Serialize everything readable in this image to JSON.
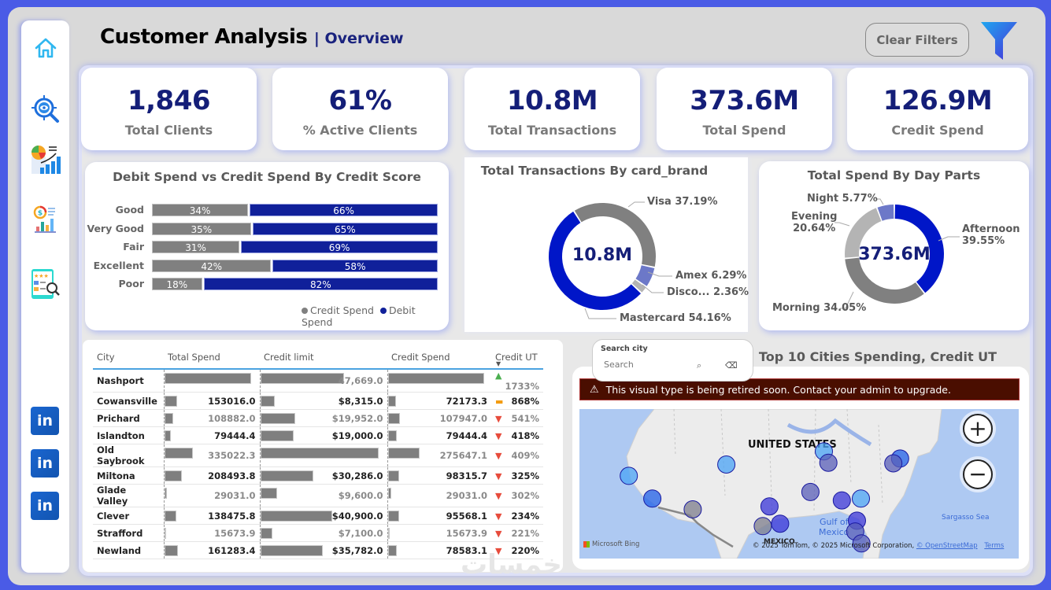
{
  "header": {
    "title": "Customer Analysis",
    "subtitle": "| Overview",
    "clear_filters_label": "Clear Filters"
  },
  "sidebar": {
    "items": [
      {
        "name": "home",
        "icon": "home-icon"
      },
      {
        "name": "insights",
        "icon": "eye-search-icon"
      },
      {
        "name": "analytics",
        "icon": "pie-bar-chart-icon"
      },
      {
        "name": "finance",
        "icon": "dollar-chart-icon"
      },
      {
        "name": "reviews",
        "icon": "rating-report-icon"
      }
    ],
    "social": [
      {
        "label": "in"
      },
      {
        "label": "in"
      },
      {
        "label": "in"
      }
    ]
  },
  "kpis": [
    {
      "value": "1,846",
      "label": "Total Clients"
    },
    {
      "value": "61%",
      "label": "% Active Clients"
    },
    {
      "value": "10.8M",
      "label": "Total Transactions"
    },
    {
      "value": "373.6M",
      "label": "Total Spend"
    },
    {
      "value": "126.9M",
      "label": "Credit Spend"
    }
  ],
  "colors": {
    "navy": "#141e78",
    "debit": "#10209a",
    "credit": "#808080",
    "blue_strong": "#0016c8",
    "blue_light": "#6c78c8",
    "gray_light": "#b4b4b4",
    "warning_bg": "#4a0e00"
  },
  "chart_data": [
    {
      "type": "bar",
      "stacked": "100%",
      "orientation": "horizontal",
      "title": "Debit Spend vs Credit Spend By Credit Score",
      "categories": [
        "Good",
        "Very Good",
        "Fair",
        "Excellent",
        "Poor"
      ],
      "series": [
        {
          "name": "Credit Spend",
          "values": [
            34,
            35,
            31,
            42,
            18
          ],
          "labels": [
            "34%",
            "35%",
            "31%",
            "42%",
            "18%"
          ]
        },
        {
          "name": "Debit Spend",
          "values": [
            66,
            65,
            69,
            58,
            82
          ],
          "labels": [
            "66%",
            "65%",
            "69%",
            "58%",
            "82%"
          ]
        }
      ],
      "legend": [
        "Credit Spend",
        "Debit Spend"
      ],
      "legend_position": "bottom-right"
    },
    {
      "type": "pie",
      "donut": true,
      "title": "Total Transactions By card_brand",
      "center_label": "10.8M",
      "slices": [
        {
          "name": "Visa",
          "value": 37.19,
          "label": "Visa 37.19%"
        },
        {
          "name": "Amex",
          "value": 6.29,
          "label": "Amex 6.29%"
        },
        {
          "name": "Discover",
          "value": 2.36,
          "label": "Disco... 2.36%"
        },
        {
          "name": "Mastercard",
          "value": 54.16,
          "label": "Mastercard 54.16%"
        }
      ]
    },
    {
      "type": "pie",
      "donut": true,
      "title": "Total Spend By Day Parts",
      "center_label": "373.6M",
      "slices": [
        {
          "name": "Afternoon",
          "value": 39.55,
          "label_line1": "Afternoon",
          "label_line2": "39.55%"
        },
        {
          "name": "Morning",
          "value": 34.05,
          "label_line1": "Morning 34.05%",
          "label_line2": ""
        },
        {
          "name": "Evening",
          "value": 20.64,
          "label_line1": "Evening",
          "label_line2": "20.64%"
        },
        {
          "name": "Night",
          "value": 5.77,
          "label_line1": "Night 5.77%",
          "label_line2": ""
        }
      ]
    },
    {
      "type": "table",
      "columns": [
        "City",
        "Total Spend",
        "Credit limit",
        "Credit Spend",
        "Credit UT"
      ],
      "sort_column": "Credit UT",
      "rows": [
        {
          "city": "Nashport",
          "total_spend": 1000000,
          "total_spend_label": "",
          "credit_limit": 47669.0,
          "credit_limit_label": "47,669.0",
          "credit_spend": 826000,
          "credit_spend_label": "",
          "ut": "1733%",
          "trend": "up",
          "shade": "light"
        },
        {
          "city": "Cowansville",
          "total_spend": 153016.0,
          "total_spend_label": "153016.0",
          "credit_limit": 8315.0,
          "credit_limit_label": "$8,315.0",
          "credit_spend": 72173.3,
          "credit_spend_label": "72173.3",
          "ut": "868%",
          "trend": "flat",
          "shade": "dark"
        },
        {
          "city": "Prichard",
          "total_spend": 108882.0,
          "total_spend_label": "108882.0",
          "credit_limit": 19952.0,
          "credit_limit_label": "$19,952.0",
          "credit_spend": 107947.0,
          "credit_spend_label": "107947.0",
          "ut": "541%",
          "trend": "down",
          "shade": "light"
        },
        {
          "city": "Islandton",
          "total_spend": 79444.4,
          "total_spend_label": "79444.4",
          "credit_limit": 19000.0,
          "credit_limit_label": "$19,000.0",
          "credit_spend": 79444.4,
          "credit_spend_label": "79444.4",
          "ut": "418%",
          "trend": "down",
          "shade": "dark"
        },
        {
          "city": "Old Saybrook",
          "total_spend": 335022.3,
          "total_spend_label": "335022.3",
          "credit_limit": 67400,
          "credit_limit_label": "",
          "credit_spend": 275647.1,
          "credit_spend_label": "275647.1",
          "ut": "409%",
          "trend": "down",
          "shade": "light"
        },
        {
          "city": "Miltona",
          "total_spend": 208493.8,
          "total_spend_label": "208493.8",
          "credit_limit": 30286.0,
          "credit_limit_label": "$30,286.0",
          "credit_spend": 98315.7,
          "credit_spend_label": "98315.7",
          "ut": "325%",
          "trend": "down",
          "shade": "dark"
        },
        {
          "city": "Glade Valley",
          "total_spend": 29031.0,
          "total_spend_label": "29031.0",
          "credit_limit": 9600.0,
          "credit_limit_label": "$9,600.0",
          "credit_spend": 29031.0,
          "credit_spend_label": "29031.0",
          "ut": "302%",
          "trend": "down",
          "shade": "light"
        },
        {
          "city": "Clever",
          "total_spend": 138475.8,
          "total_spend_label": "138475.8",
          "credit_limit": 40900.0,
          "credit_limit_label": "$40,900.0",
          "credit_spend": 95568.1,
          "credit_spend_label": "95568.1",
          "ut": "234%",
          "trend": "down",
          "shade": "dark"
        },
        {
          "city": "Strafford",
          "total_spend": 15673.9,
          "total_spend_label": "15673.9",
          "credit_limit": 7100.0,
          "credit_limit_label": "$7,100.0",
          "credit_spend": 15673.9,
          "credit_spend_label": "15673.9",
          "ut": "221%",
          "trend": "down",
          "shade": "light"
        },
        {
          "city": "Newland",
          "total_spend": 161283.4,
          "total_spend_label": "161283.4",
          "credit_limit": 35782.0,
          "credit_limit_label": "$35,782.0",
          "credit_spend": 78583.1,
          "credit_spend_label": "78583.1",
          "ut": "220%",
          "trend": "down",
          "shade": "dark"
        }
      ]
    }
  ],
  "map": {
    "title": "Top 10 Cities Spending, Credit UT",
    "search_label": "Search city",
    "search_placeholder": "Search",
    "warning": "This visual type is being retired soon. Contact your admin to upgrade.",
    "country_label": "UNITED STATES",
    "gulf_label_1": "Gulf of",
    "gulf_label_2": "Mexico",
    "sea_label": "Sargasso Sea",
    "mexico_label": "MEXICO",
    "bing_label": "Microsoft Bing",
    "attribution": "© 2025 TomTom, © 2025 Microsoft Corporation,",
    "osm_link": "© OpenStreetMap",
    "terms_link": "Terms",
    "zoom_in": "+",
    "zoom_out": "−",
    "points": [
      {
        "lon": -122.4,
        "lat": 37.8,
        "shade": "light"
      },
      {
        "lon": -118.2,
        "lat": 34.0,
        "shade": "strong"
      },
      {
        "lon": -111.0,
        "lat": 32.2,
        "shade": "gray"
      },
      {
        "lon": -105.0,
        "lat": 39.7,
        "shade": "light"
      },
      {
        "lon": -97.3,
        "lat": 32.7,
        "shade": "mid"
      },
      {
        "lon": -95.4,
        "lat": 29.8,
        "shade": "mid"
      },
      {
        "lon": -98.5,
        "lat": 29.4,
        "shade": "gray"
      },
      {
        "lon": -90.0,
        "lat": 35.1,
        "shade": "slate"
      },
      {
        "lon": -87.6,
        "lat": 41.9,
        "shade": "light"
      },
      {
        "lon": -86.8,
        "lat": 40.0,
        "shade": "slate"
      },
      {
        "lon": -84.4,
        "lat": 33.7,
        "shade": "mid"
      },
      {
        "lon": -81.0,
        "lat": 34.0,
        "shade": "light"
      },
      {
        "lon": -81.7,
        "lat": 30.3,
        "shade": "mid"
      },
      {
        "lon": -82.0,
        "lat": 28.5,
        "shade": "slate"
      },
      {
        "lon": -80.9,
        "lat": 26.5,
        "shade": "slate"
      },
      {
        "lon": -74.0,
        "lat": 40.7,
        "shade": "strong"
      },
      {
        "lon": -75.2,
        "lat": 39.9,
        "shade": "slate"
      }
    ]
  },
  "watermark": "خمسات"
}
